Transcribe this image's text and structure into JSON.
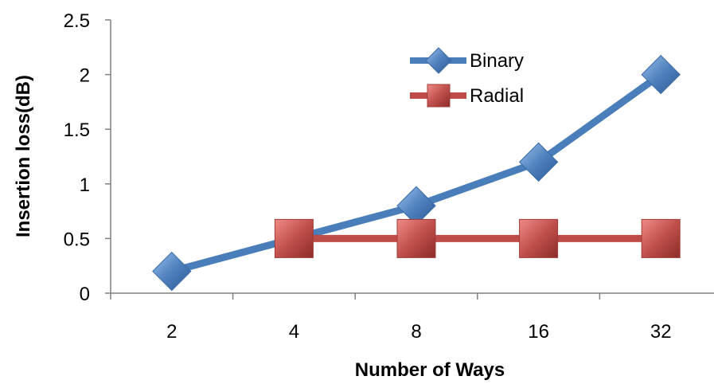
{
  "chart_data": {
    "type": "line",
    "categories": [
      "2",
      "4",
      "8",
      "16",
      "32"
    ],
    "series": [
      {
        "name": "Binary",
        "values": [
          0.2,
          0.5,
          0.8,
          1.2,
          2.0
        ],
        "color": "#4a7ebb",
        "marker": "diamond"
      },
      {
        "name": "Radial",
        "values": [
          null,
          0.5,
          0.5,
          0.5,
          0.5
        ],
        "color": "#be4b48",
        "marker": "square"
      }
    ],
    "title": "",
    "xlabel": "Number of Ways",
    "ylabel": "Insertion loss(dB)",
    "ylim": [
      0,
      2.5
    ],
    "yticks": [
      "0",
      "0.5",
      "1",
      "1.5",
      "2",
      "2.5"
    ],
    "grid": false,
    "legend_position": "top-right"
  }
}
